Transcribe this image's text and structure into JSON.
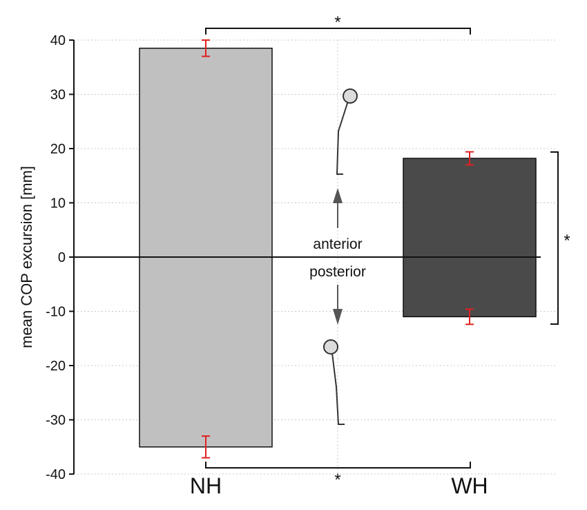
{
  "chart_data": {
    "type": "bar",
    "ylabel": "mean COP excursion [mm]",
    "ylim": [
      -40,
      40
    ],
    "yticks": [
      40,
      30,
      20,
      10,
      0,
      -10,
      -20,
      -30,
      -40
    ],
    "ytick_labels": [
      "40",
      "30",
      "20",
      "10",
      "0",
      "-10",
      "-20",
      "-30",
      "-40"
    ],
    "categories": [
      "NH",
      "WH"
    ],
    "grid": true,
    "series": [
      {
        "direction": "anterior",
        "values": [
          38.5,
          18.2
        ],
        "error": [
          1.5,
          1.2
        ]
      },
      {
        "direction": "posterior",
        "values": [
          -35.0,
          -11.0
        ],
        "error": [
          2.0,
          1.4
        ]
      }
    ],
    "bar_colors": [
      "#c0c0c0",
      "#4a4a4a"
    ],
    "error_bar_color": "#e02020",
    "annotations": {
      "anterior_label": "anterior",
      "posterior_label": "posterior",
      "significance_symbol": "*"
    }
  }
}
